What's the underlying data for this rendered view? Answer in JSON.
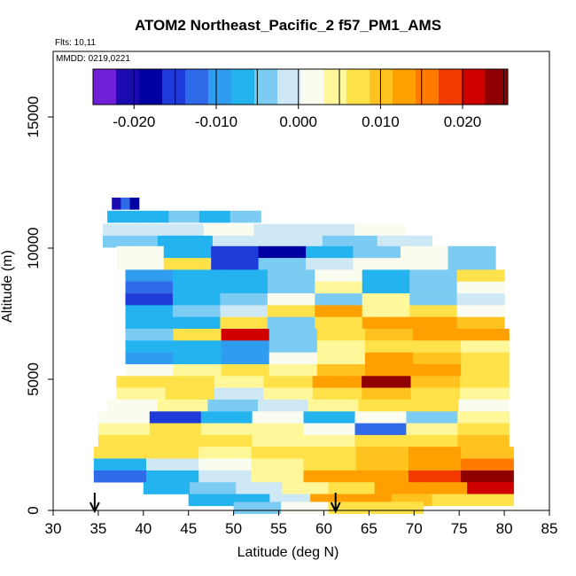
{
  "header": {
    "title": "ATOM2 Northeast_Pacific_2 f57_PM1_AMS",
    "flights": "Flts: 10,11",
    "mmdd": "MMDD: 0219,0221"
  },
  "colors": {
    "scale": [
      "#6f1fd8",
      "#1a0ab0",
      "#0000a0",
      "#1e3ad8",
      "#2f6be8",
      "#2f9cf0",
      "#23b4f0",
      "#7ccbf2",
      "#cfe8f6",
      "#fafcf0",
      "#fff79a",
      "#ffe24a",
      "#ffc21e",
      "#ffa000",
      "#ff7a00",
      "#f23a00",
      "#d00000",
      "#900000"
    ],
    "missing": "#ffffff",
    "arrow": "#000000"
  },
  "chart_data": {
    "type": "heatmap",
    "title": "ATOM2 Northeast_Pacific_2 f57_PM1_AMS",
    "xlabel": "Latitude (deg N)",
    "ylabel": "Altitude (m)",
    "xlim": [
      30,
      85
    ],
    "ylim": [
      0,
      17500
    ],
    "xticks": [
      30,
      35,
      40,
      45,
      50,
      55,
      60,
      65,
      70,
      75,
      80,
      85
    ],
    "yticks": [
      0,
      5000,
      10000,
      15000
    ],
    "grid": false,
    "colorbar": {
      "range": [
        -0.025,
        0.0255
      ],
      "ticks": [
        -0.02,
        -0.01,
        0.0,
        0.01,
        0.02
      ],
      "tick_labels": [
        "-0.020",
        "-0.010",
        "0.000",
        "0.010",
        "0.020"
      ],
      "placement": "top"
    },
    "arrows_latitude": [
      34.6,
      61.3
    ],
    "bands": [
      {
        "alt": 11700,
        "lat_min": 36.5,
        "lat_max": 39.5,
        "values": [
          -0.02,
          -0.012,
          -0.018
        ]
      },
      {
        "alt": 11200,
        "lat_min": 36.0,
        "lat_max": 53.0,
        "values": [
          -0.008,
          -0.006,
          -0.005,
          -0.006,
          -0.005
        ]
      },
      {
        "alt": 10700,
        "lat_min": 35.5,
        "lat_max": 69.0,
        "values": [
          0.0,
          -0.002,
          0.001,
          -0.001,
          0.0,
          0.001
        ]
      },
      {
        "alt": 10250,
        "lat_min": 35.5,
        "lat_max": 72.0,
        "values": [
          -0.004,
          -0.006,
          -0.002,
          0.0,
          -0.003,
          -0.001
        ]
      },
      {
        "alt": 9850,
        "lat_min": 37.0,
        "lat_max": 79.0,
        "values": [
          0.002,
          -0.006,
          -0.016,
          -0.018,
          -0.006,
          -0.003,
          0.001,
          -0.004
        ]
      },
      {
        "alt": 9400,
        "lat_min": 37.0,
        "lat_max": 79.0,
        "values": [
          0.003,
          0.006,
          -0.014,
          -0.004,
          -0.002,
          0.002,
          0.003,
          -0.004
        ]
      },
      {
        "alt": 8950,
        "lat_min": 38.0,
        "lat_max": 80.0,
        "values": [
          -0.01,
          -0.008,
          -0.006,
          -0.003,
          0.003,
          -0.007,
          -0.004,
          0.006
        ]
      },
      {
        "alt": 8500,
        "lat_min": 38.0,
        "lat_max": 80.0,
        "values": [
          -0.012,
          -0.008,
          -0.006,
          -0.005,
          0.004,
          -0.006,
          -0.005,
          0.003
        ]
      },
      {
        "alt": 8050,
        "lat_min": 38.0,
        "lat_max": 80.0,
        "values": [
          -0.014,
          -0.006,
          -0.004,
          0.002,
          -0.005,
          0.005,
          -0.004,
          -0.002
        ]
      },
      {
        "alt": 7600,
        "lat_min": 38.0,
        "lat_max": 80.0,
        "values": [
          -0.008,
          -0.004,
          -0.002,
          0.006,
          0.012,
          0.004,
          0.006,
          0.002
        ]
      },
      {
        "alt": 7150,
        "lat_min": 38.0,
        "lat_max": 80.0,
        "values": [
          -0.008,
          -0.006,
          0.008,
          -0.004,
          0.006,
          0.012,
          0.014,
          0.01
        ]
      },
      {
        "alt": 6700,
        "lat_min": 38.0,
        "lat_max": 80.5,
        "values": [
          -0.005,
          0.008,
          0.022,
          -0.004,
          0.006,
          0.01,
          0.014,
          0.012
        ]
      },
      {
        "alt": 6250,
        "lat_min": 38.0,
        "lat_max": 80.5,
        "values": [
          -0.008,
          -0.006,
          -0.01,
          -0.003,
          0.005,
          0.008,
          0.006,
          0.004
        ]
      },
      {
        "alt": 5800,
        "lat_min": 38.0,
        "lat_max": 80.5,
        "values": [
          -0.01,
          -0.006,
          -0.009,
          0.002,
          0.004,
          0.014,
          0.01,
          0.008
        ]
      },
      {
        "alt": 5350,
        "lat_min": 38.0,
        "lat_max": 80.5,
        "values": [
          0.002,
          0.004,
          0.006,
          0.004,
          0.01,
          0.014,
          0.012,
          0.008
        ]
      },
      {
        "alt": 4900,
        "lat_min": 37.0,
        "lat_max": 80.5,
        "values": [
          0.006,
          0.008,
          0.004,
          0.006,
          0.012,
          0.023,
          0.01,
          0.006
        ]
      },
      {
        "alt": 4450,
        "lat_min": 37.0,
        "lat_max": 80.5,
        "values": [
          0.004,
          0.006,
          -0.002,
          0.004,
          0.008,
          0.01,
          0.008,
          0.004
        ]
      },
      {
        "alt": 4000,
        "lat_min": 36.0,
        "lat_max": 80.5,
        "values": [
          0.002,
          0.004,
          -0.003,
          0.0,
          0.004,
          0.006,
          0.006,
          0.003
        ]
      },
      {
        "alt": 3550,
        "lat_min": 35.0,
        "lat_max": 80.5,
        "values": [
          0.002,
          -0.014,
          -0.008,
          0.003,
          -0.006,
          0.002,
          -0.004,
          0.004
        ]
      },
      {
        "alt": 3100,
        "lat_min": 35.0,
        "lat_max": 80.5,
        "values": [
          0.004,
          0.006,
          0.004,
          0.004,
          0.002,
          -0.012,
          0.005,
          0.008
        ]
      },
      {
        "alt": 2650,
        "lat_min": 35.0,
        "lat_max": 80.5,
        "values": [
          0.006,
          0.008,
          0.006,
          0.004,
          0.004,
          0.006,
          0.006,
          0.01
        ]
      },
      {
        "alt": 2200,
        "lat_min": 34.5,
        "lat_max": 81.0,
        "values": [
          0.008,
          0.006,
          0.004,
          0.006,
          0.008,
          0.01,
          0.012,
          0.01
        ]
      },
      {
        "alt": 1750,
        "lat_min": 34.5,
        "lat_max": 81.0,
        "values": [
          -0.006,
          -0.002,
          0.002,
          0.004,
          0.006,
          0.01,
          0.012,
          0.016
        ]
      },
      {
        "alt": 1300,
        "lat_min": 34.5,
        "lat_max": 81.0,
        "values": [
          -0.012,
          -0.006,
          0.0,
          0.004,
          0.012,
          0.014,
          0.018,
          0.023
        ]
      },
      {
        "alt": 850,
        "lat_min": 40.0,
        "lat_max": 81.0,
        "values": [
          -0.006,
          -0.004,
          -0.002,
          0.004,
          0.008,
          0.012,
          0.014,
          0.02
        ]
      },
      {
        "alt": 400,
        "lat_min": 45.0,
        "lat_max": 81.0,
        "values": [
          -0.008,
          -0.006,
          0.0,
          0.012,
          0.014,
          0.01,
          0.008,
          0.006
        ]
      },
      {
        "alt": 100,
        "lat_min": 50.0,
        "lat_max": 71.0,
        "values": [
          -0.004,
          0.002,
          0.006,
          0.008
        ]
      }
    ]
  }
}
